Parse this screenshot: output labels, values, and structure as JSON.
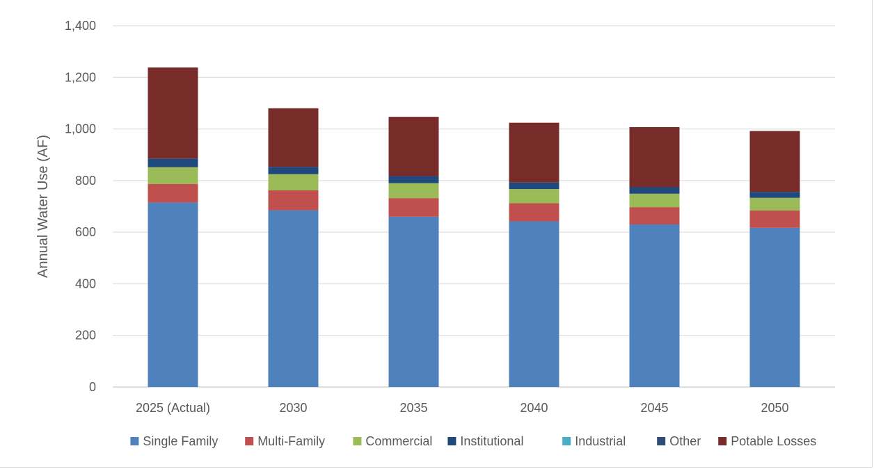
{
  "chart_data": {
    "type": "bar",
    "stacked": true,
    "title": "",
    "xlabel": "",
    "ylabel": "Annual Water Use (AF)",
    "ylim": [
      0,
      1400
    ],
    "yticks": [
      "0",
      "200",
      "400",
      "600",
      "800",
      "1,000",
      "1,200",
      "1,400"
    ],
    "grid": true,
    "legend_position": "bottom",
    "categories": [
      "2025 (Actual)",
      "2030",
      "2035",
      "2040",
      "2045",
      "2050"
    ],
    "series": [
      {
        "name": "Single Family",
        "color": "#4f81bd",
        "values": [
          715,
          685,
          660,
          642,
          630,
          617
        ]
      },
      {
        "name": "Multi-Family",
        "color": "#c0504d",
        "values": [
          72,
          77,
          72,
          70,
          67,
          67
        ]
      },
      {
        "name": "Commercial",
        "color": "#9bbb59",
        "values": [
          65,
          63,
          58,
          55,
          52,
          49
        ]
      },
      {
        "name": "Institutional",
        "color": "#1f497d",
        "values": [
          33,
          28,
          27,
          25,
          25,
          23
        ]
      },
      {
        "name": "Industrial",
        "color": "#4bacc6",
        "values": [
          0,
          0,
          0,
          0,
          0,
          0
        ]
      },
      {
        "name": "Other",
        "color": "#2c4d75",
        "values": [
          0,
          0,
          0,
          0,
          0,
          0
        ]
      },
      {
        "name": "Potable Losses",
        "color": "#772c2a",
        "values": [
          353,
          227,
          230,
          232,
          233,
          236
        ]
      }
    ]
  }
}
